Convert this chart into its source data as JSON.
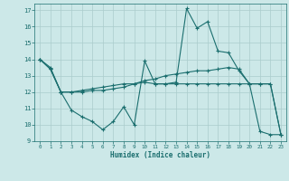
{
  "xlabel": "Humidex (Indice chaleur)",
  "bg_color": "#cce8e8",
  "grid_color": "#aacccc",
  "line_color": "#1a6e6e",
  "xlim": [
    -0.5,
    23.5
  ],
  "ylim": [
    9,
    17.4
  ],
  "yticks": [
    9,
    10,
    11,
    12,
    13,
    14,
    15,
    16,
    17
  ],
  "xticks": [
    0,
    1,
    2,
    3,
    4,
    5,
    6,
    7,
    8,
    9,
    10,
    11,
    12,
    13,
    14,
    15,
    16,
    17,
    18,
    19,
    20,
    21,
    22,
    23
  ],
  "series": [
    [
      14.0,
      13.5,
      12.0,
      10.9,
      10.5,
      10.2,
      9.7,
      10.2,
      11.1,
      10.0,
      13.9,
      12.5,
      12.5,
      12.6,
      17.1,
      15.9,
      16.3,
      14.5,
      14.4,
      13.3,
      12.5,
      9.6,
      9.4,
      9.4
    ],
    [
      14.0,
      13.4,
      12.0,
      12.0,
      12.0,
      12.1,
      12.1,
      12.2,
      12.3,
      12.5,
      12.7,
      12.8,
      13.0,
      13.1,
      13.2,
      13.3,
      13.3,
      13.4,
      13.5,
      13.4,
      12.5,
      12.5,
      12.5,
      9.4
    ],
    [
      14.0,
      13.4,
      12.0,
      12.0,
      12.1,
      12.2,
      12.3,
      12.4,
      12.5,
      12.5,
      12.6,
      12.5,
      12.5,
      12.5,
      12.5,
      12.5,
      12.5,
      12.5,
      12.5,
      12.5,
      12.5,
      12.5,
      12.5,
      9.4
    ]
  ]
}
